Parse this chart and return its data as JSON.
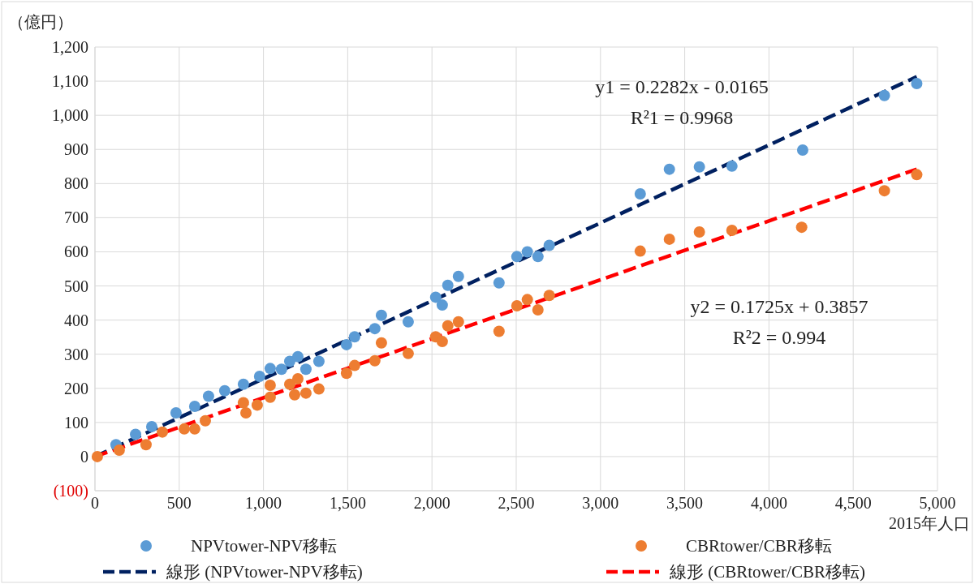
{
  "chart_data": {
    "type": "scatter",
    "ylabel": "（億円）",
    "xlabel": "2015年人口",
    "xlim": [
      0,
      5000
    ],
    "ylim": [
      -100,
      1200
    ],
    "xticks": [
      0,
      500,
      {
        "value": 1000,
        "label": "1,000"
      },
      {
        "value": 1500,
        "label": "1,500"
      },
      {
        "value": 2000,
        "label": "2,000"
      },
      {
        "value": 2500,
        "label": "2,500"
      },
      {
        "value": 3000,
        "label": "3,000"
      },
      {
        "value": 3500,
        "label": "3,500"
      },
      {
        "value": 4000,
        "label": "4,000"
      },
      {
        "value": 4500,
        "label": "4,500"
      },
      {
        "value": 5000,
        "label": "5,000"
      }
    ],
    "yticks": [
      {
        "value": -100,
        "label": "(100)"
      },
      0,
      100,
      200,
      300,
      400,
      500,
      600,
      700,
      800,
      900,
      {
        "value": 1000,
        "label": "1,000"
      },
      {
        "value": 1100,
        "label": "1,100"
      },
      {
        "value": 1200,
        "label": "1,200"
      }
    ],
    "grid": true,
    "legend": "bottom",
    "annotations": [
      "y1 = 0.2282x - 0.0165",
      "R²1 = 0.9968",
      "y2 = 0.1725x + 0.3857",
      "R²2 = 0.994"
    ],
    "series": [
      {
        "name": "NPVtower-NPV移転",
        "type": "scatter",
        "marker": "circle",
        "color": "#5b9bd5",
        "x": [
          125,
          241,
          337,
          481,
          592,
          674,
          770,
          881,
          977,
          1040,
          1107,
          1156,
          1204,
          1252,
          1329,
          1493,
          1541,
          1661,
          1700,
          1859,
          2022,
          2061,
          2094,
          2157,
          2398,
          2504,
          2566,
          2629,
          2696,
          3236,
          3409,
          3587,
          3780,
          4200,
          4685,
          4877
        ],
        "values": [
          35,
          65,
          88,
          128,
          147,
          177,
          193,
          212,
          235,
          258,
          256,
          279,
          293,
          256,
          279,
          328,
          351,
          375,
          414,
          395,
          467,
          444,
          502,
          528,
          509,
          586,
          600,
          586,
          619,
          770,
          842,
          849,
          851,
          898,
          1058,
          1093
        ]
      },
      {
        "name": "CBRtower/CBR移転",
        "type": "scatter",
        "marker": "circle",
        "color": "#ed7d31",
        "x": [
          14,
          144,
          303,
          400,
          530,
          592,
          655,
          881,
          896,
          963,
          1040,
          1040,
          1156,
          1185,
          1204,
          1252,
          1329,
          1493,
          1541,
          1661,
          1700,
          1859,
          2022,
          2061,
          2094,
          2157,
          2398,
          2504,
          2566,
          2629,
          2696,
          3236,
          3409,
          3587,
          3780,
          4194,
          4685,
          4877
        ],
        "values": [
          0,
          19,
          35,
          72,
          81,
          81,
          105,
          158,
          128,
          151,
          209,
          174,
          212,
          181,
          228,
          186,
          198,
          244,
          267,
          281,
          333,
          302,
          351,
          337,
          383,
          395,
          367,
          442,
          460,
          430,
          472,
          602,
          637,
          658,
          663,
          672,
          779,
          826
        ]
      },
      {
        "name": "線形 (NPVtower-NPV移転)",
        "type": "line",
        "line_style": "dashed",
        "color": "#002060",
        "x": [
          0,
          4877
        ],
        "values": [
          0,
          1113
        ]
      },
      {
        "name": "線形 (CBRtower/CBR移転)",
        "type": "line",
        "line_style": "dashed",
        "color": "#ff0000",
        "x": [
          0,
          4877
        ],
        "values": [
          0,
          842
        ]
      }
    ]
  }
}
